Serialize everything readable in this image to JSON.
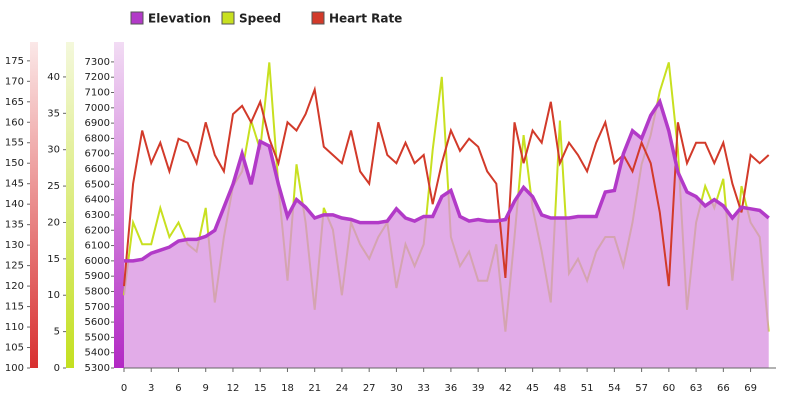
{
  "chart_data": {
    "type": "line",
    "xlim": [
      0,
      71.8
    ],
    "xticks": [
      0,
      3,
      6,
      9,
      12,
      15,
      18,
      21,
      24,
      27,
      30,
      33,
      36,
      39,
      42,
      45,
      48,
      51,
      54,
      57,
      60,
      63,
      66,
      69
    ],
    "ylim": [
      5300,
      7430
    ],
    "yticks": [
      5300,
      5400,
      5500,
      5600,
      5700,
      5800,
      5900,
      6000,
      6100,
      6200,
      6300,
      6400,
      6500,
      6600,
      6700,
      6800,
      6900,
      7000,
      7100,
      7200,
      7300
    ],
    "y2lim": [
      0,
      44.8
    ],
    "y2ticks": [
      0,
      5,
      10,
      15,
      20,
      25,
      30,
      35,
      40
    ],
    "y3lim": [
      100,
      179.6
    ],
    "y3ticks": [
      100,
      105,
      110,
      115,
      120,
      125,
      130,
      135,
      140,
      145,
      150,
      155,
      160,
      165,
      170,
      175
    ],
    "x": [
      0,
      1,
      2,
      3,
      4,
      5,
      6,
      7,
      8,
      9,
      10,
      11,
      12,
      13,
      14,
      15,
      16,
      17,
      18,
      19,
      20,
      21,
      22,
      23,
      24,
      25,
      26,
      27,
      28,
      29,
      30,
      31,
      32,
      33,
      34,
      35,
      36,
      37,
      38,
      39,
      40,
      41,
      42,
      43,
      44,
      45,
      46,
      47,
      48,
      49,
      50,
      51,
      52,
      53,
      54,
      55,
      56,
      57,
      58,
      59,
      60,
      61,
      62,
      63,
      64,
      65,
      66,
      67,
      68,
      69,
      70,
      71
    ],
    "series": [
      {
        "name": "Elevation",
        "color": "#b23ac8",
        "axis": "y",
        "values": [
          6000,
          6000,
          6010,
          6050,
          6070,
          6090,
          6130,
          6140,
          6140,
          6160,
          6200,
          6350,
          6500,
          6700,
          6500,
          6780,
          6750,
          6500,
          6290,
          6400,
          6350,
          6280,
          6300,
          6300,
          6280,
          6270,
          6250,
          6250,
          6250,
          6260,
          6340,
          6280,
          6260,
          6290,
          6290,
          6420,
          6460,
          6290,
          6260,
          6270,
          6260,
          6260,
          6270,
          6390,
          6480,
          6420,
          6300,
          6280,
          6280,
          6280,
          6290,
          6290,
          6290,
          6450,
          6460,
          6700,
          6850,
          6800,
          6950,
          7040,
          6850,
          6580,
          6450,
          6420,
          6360,
          6400,
          6360,
          6280,
          6350,
          6340,
          6330,
          6280
        ]
      },
      {
        "name": "Speed",
        "color": "#c8e020",
        "axis": "y2",
        "values": [
          10,
          20,
          17,
          17,
          22,
          18,
          20,
          17,
          16,
          22,
          9,
          18,
          25,
          27,
          34,
          30,
          42,
          25,
          12,
          28,
          20,
          8,
          22,
          19,
          10,
          20,
          17,
          15,
          18,
          20,
          11,
          17,
          14,
          17,
          30,
          40,
          18,
          14,
          16,
          12,
          12,
          17,
          5,
          18,
          32,
          22,
          16,
          9,
          34,
          13,
          15,
          12,
          16,
          18,
          18,
          14,
          20,
          28,
          32,
          38,
          42,
          30,
          8,
          20,
          25,
          22,
          26,
          12,
          25,
          20,
          18,
          5
        ]
      },
      {
        "name": "Heart Rate",
        "color": "#d23a2a",
        "axis": "y3",
        "values": [
          120,
          145,
          158,
          150,
          155,
          148,
          156,
          155,
          150,
          160,
          152,
          148,
          162,
          164,
          160,
          165,
          156,
          150,
          160,
          158,
          162,
          168,
          154,
          152,
          150,
          158,
          148,
          145,
          160,
          152,
          150,
          155,
          150,
          152,
          140,
          150,
          158,
          153,
          156,
          154,
          148,
          145,
          122,
          160,
          150,
          158,
          155,
          165,
          150,
          155,
          152,
          148,
          155,
          160,
          150,
          152,
          148,
          155,
          150,
          138,
          120,
          160,
          150,
          155,
          155,
          150,
          155,
          145,
          138,
          152,
          150,
          152
        ]
      }
    ]
  }
}
